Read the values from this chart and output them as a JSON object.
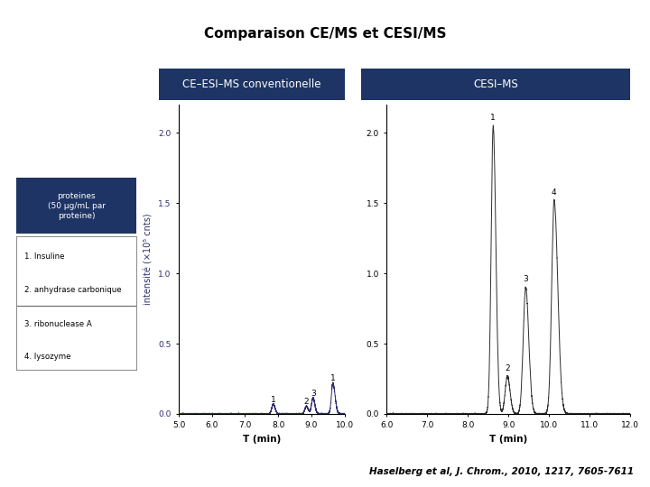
{
  "title": "Comparaison CE/MS et CESI/MS",
  "title_fontsize": 11,
  "title_fontweight": "bold",
  "background_color": "#ffffff",
  "header_color": "#1e3464",
  "header_text_color": "#ffffff",
  "legend_box_header": "proteines\n(50 µg/mL par\nproteine)",
  "legend_items": [
    "1. Insuline",
    "2. anhydrase carbonique",
    "3. ribonuclease A",
    "4. lysozyme"
  ],
  "panel1_title": "CE–ESI–MS conventionelle",
  "panel2_title": "CESI–MS",
  "ylabel": "intensité (×10⁵ cnts)",
  "xlabel": "T (min)",
  "panel1_xlim": [
    5.0,
    10.0
  ],
  "panel1_xticks": [
    5.0,
    6.0,
    7.0,
    8.0,
    9.0,
    10.0
  ],
  "panel1_ylim": [
    0.0,
    2.2
  ],
  "panel1_yticks": [
    0.0,
    0.5,
    1.0,
    1.5,
    2.0
  ],
  "panel2_xlim": [
    6.0,
    12.0
  ],
  "panel2_xticks": [
    6.0,
    7.0,
    8.0,
    9.0,
    10.0,
    11.0,
    12.0
  ],
  "panel2_ylim": [
    0.0,
    2.2
  ],
  "panel2_yticks": [
    0.0,
    0.5,
    1.0,
    1.5,
    2.0
  ],
  "citation": "Haselberg et al, J. Chrom., 2010, 1217, 7605-7611",
  "citation_fontsize": 7.5
}
